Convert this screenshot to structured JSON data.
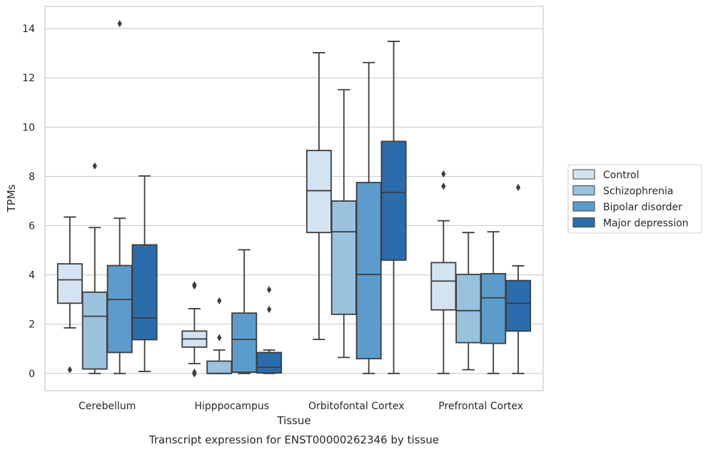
{
  "chart_data": {
    "type": "box",
    "caption": "Transcript expression for ENST00000262346 by tissue",
    "xlabel": "Tissue",
    "ylabel": "TPMs",
    "ylim": [
      -0.7,
      14.9
    ],
    "yticks": [
      0,
      2,
      4,
      6,
      8,
      10,
      12,
      14
    ],
    "grid": "horizontal",
    "legend_position": "right",
    "categories": [
      "Cerebellum",
      "Hipppocampus",
      "Orbitofontal Cortex",
      "Prefrontal Cortex"
    ],
    "series": [
      {
        "name": "Control",
        "color": "#d4e3f2",
        "boxes": [
          {
            "whislo": 1.85,
            "q1": 2.85,
            "med": 3.8,
            "q3": 4.45,
            "whishi": 6.35,
            "fliers": [
              0.15
            ]
          },
          {
            "whislo": 0.4,
            "q1": 1.07,
            "med": 1.4,
            "q3": 1.72,
            "whishi": 2.63,
            "fliers": [
              3.6,
              3.55,
              0.05,
              -0.02
            ]
          },
          {
            "whislo": 1.38,
            "q1": 5.72,
            "med": 7.42,
            "q3": 9.05,
            "whishi": 13.02,
            "fliers": []
          },
          {
            "whislo": 0.0,
            "q1": 2.58,
            "med": 3.75,
            "q3": 4.5,
            "whishi": 6.2,
            "fliers": [
              8.1,
              7.6
            ]
          }
        ]
      },
      {
        "name": "Schizophrenia",
        "color": "#99c2df",
        "boxes": [
          {
            "whislo": 0.0,
            "q1": 0.18,
            "med": 2.32,
            "q3": 3.3,
            "whishi": 5.92,
            "fliers": [
              8.42
            ]
          },
          {
            "whislo": 0.0,
            "q1": 0.0,
            "med": 0.0,
            "q3": 0.5,
            "whishi": 0.95,
            "fliers": [
              2.95,
              1.45
            ]
          },
          {
            "whislo": 0.65,
            "q1": 2.4,
            "med": 5.75,
            "q3": 7.0,
            "whishi": 11.52,
            "fliers": []
          },
          {
            "whislo": 0.15,
            "q1": 1.25,
            "med": 2.55,
            "q3": 4.02,
            "whishi": 5.72,
            "fliers": []
          }
        ]
      },
      {
        "name": "Bipolar disorder",
        "color": "#5b9ccc",
        "boxes": [
          {
            "whislo": 0.0,
            "q1": 0.85,
            "med": 3.0,
            "q3": 4.38,
            "whishi": 6.3,
            "fliers": [
              14.2
            ]
          },
          {
            "whislo": 0.0,
            "q1": 0.05,
            "med": 1.38,
            "q3": 2.45,
            "whishi": 5.02,
            "fliers": []
          },
          {
            "whislo": 0.0,
            "q1": 0.6,
            "med": 4.02,
            "q3": 7.75,
            "whishi": 12.62,
            "fliers": []
          },
          {
            "whislo": 0.0,
            "q1": 1.22,
            "med": 3.07,
            "q3": 4.05,
            "whishi": 5.75,
            "fliers": []
          }
        ]
      },
      {
        "name": "Major depression",
        "color": "#2b6dac",
        "boxes": [
          {
            "whislo": 0.08,
            "q1": 1.37,
            "med": 2.25,
            "q3": 5.22,
            "whishi": 8.02,
            "fliers": []
          },
          {
            "whislo": 0.0,
            "q1": 0.02,
            "med": 0.25,
            "q3": 0.85,
            "whishi": 0.95,
            "fliers": [
              3.4,
              2.6
            ]
          },
          {
            "whislo": 0.0,
            "q1": 4.6,
            "med": 7.35,
            "q3": 9.42,
            "whishi": 13.48,
            "fliers": []
          },
          {
            "whislo": 0.0,
            "q1": 1.72,
            "med": 2.85,
            "q3": 3.77,
            "whishi": 4.37,
            "fliers": [
              7.55
            ]
          }
        ]
      }
    ]
  }
}
